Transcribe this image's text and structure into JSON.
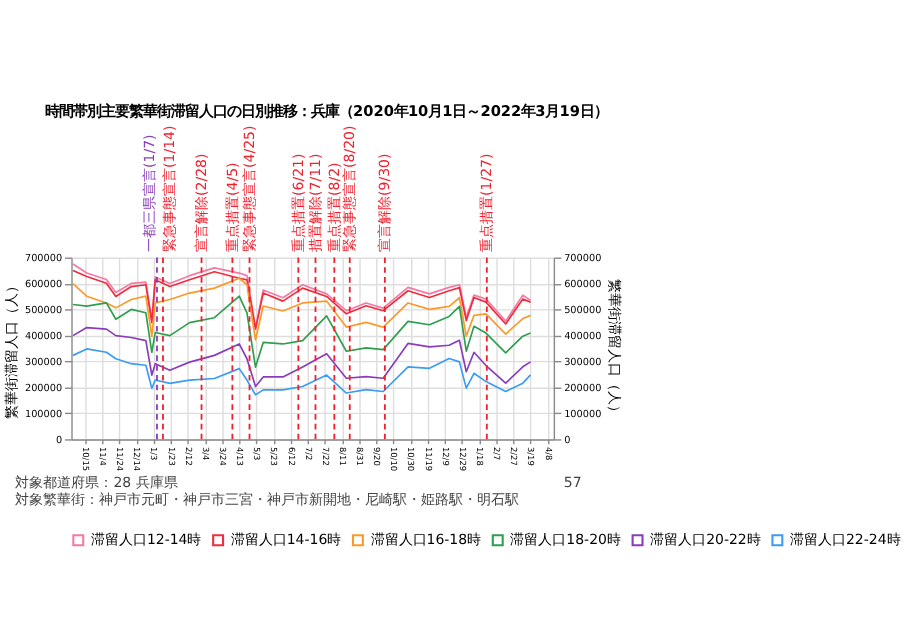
{
  "chart_data": {
    "type": "line",
    "title": "時間帯別主要繁華街滞留人口の日別推移：兵庫（2020年10月1日～2022年3月19日）",
    "ylabel": "繁華街滞留人口（人）",
    "y2label": "繁華街滞留人口（人）",
    "x": [
      "2020-10-01",
      "2020-10-17",
      "2020-11-09",
      "2020-11-20",
      "2020-12-08",
      "2020-12-25",
      "2021-01-01",
      "2021-01-05",
      "2021-01-22",
      "2021-02-14",
      "2021-03-15",
      "2021-04-13",
      "2021-04-22",
      "2021-05-02",
      "2021-05-11",
      "2021-06-03",
      "2021-06-26",
      "2021-07-24",
      "2021-08-16",
      "2021-09-08",
      "2021-09-28",
      "2021-10-27",
      "2021-11-21",
      "2021-12-14",
      "2021-12-26",
      "2022-01-03",
      "2022-01-12",
      "2022-01-26",
      "2022-02-18",
      "2022-03-10",
      "2022-03-19"
    ],
    "series": [
      {
        "name": "滞留人口12-14時",
        "color": "#f47aa6",
        "values": [
          675000,
          640000,
          615000,
          565000,
          600000,
          605000,
          460000,
          625000,
          600000,
          630000,
          660000,
          640000,
          630000,
          430000,
          575000,
          545000,
          595000,
          560000,
          495000,
          525000,
          505000,
          585000,
          560000,
          585000,
          595000,
          470000,
          555000,
          540000,
          455000,
          555000,
          535000
        ]
      },
      {
        "name": "滞留人口14-16時",
        "color": "#f02d3e",
        "values": [
          650000,
          627000,
          601000,
          550000,
          588000,
          595000,
          449000,
          614000,
          588000,
          614000,
          645000,
          620000,
          614000,
          424000,
          563000,
          532000,
          582000,
          550000,
          483000,
          514000,
          495000,
          572000,
          546000,
          572000,
          584000,
          457000,
          546000,
          528000,
          444000,
          540000,
          528000
        ]
      },
      {
        "name": "滞留人口16-18時",
        "color": "#fb9a2a",
        "values": [
          599000,
          551000,
          525000,
          506000,
          538000,
          551000,
          396000,
          525000,
          538000,
          563000,
          582000,
          620000,
          595000,
          383000,
          513000,
          494000,
          525000,
          532000,
          432000,
          450000,
          432000,
          525000,
          500000,
          512000,
          545000,
          397000,
          477000,
          483000,
          405000,
          465000,
          477000
        ]
      },
      {
        "name": "滞留人口18-20時",
        "color": "#2e9f4e",
        "values": [
          519000,
          513000,
          525000,
          462000,
          500000,
          487000,
          335000,
          411000,
          399000,
          449000,
          468000,
          551000,
          487000,
          278000,
          373000,
          367000,
          380000,
          475000,
          339000,
          352000,
          345000,
          454000,
          441000,
          473000,
          512000,
          339000,
          435000,
          409000,
          333000,
          397000,
          409000
        ]
      },
      {
        "name": "滞留人口20-22時",
        "color": "#8a3dbb",
        "values": [
          399000,
          430000,
          424000,
          399000,
          392000,
          380000,
          247000,
          291000,
          266000,
          297000,
          323000,
          367000,
          310000,
          203000,
          240000,
          240000,
          278000,
          329000,
          235000,
          241000,
          235000,
          369000,
          356000,
          362000,
          381000,
          260000,
          335000,
          284000,
          216000,
          279000,
          298000
        ]
      },
      {
        "name": "滞留人口22-24時",
        "color": "#3a9cf2",
        "values": [
          323000,
          348000,
          335000,
          310000,
          291000,
          285000,
          196000,
          228000,
          215000,
          228000,
          234000,
          272000,
          228000,
          171000,
          190000,
          190000,
          203000,
          247000,
          178000,
          191000,
          184000,
          279000,
          273000,
          311000,
          298000,
          197000,
          254000,
          222000,
          184000,
          216000,
          248000
        ]
      }
    ],
    "xlim": [
      "2020-09-29",
      "2022-04-15"
    ],
    "xticks": [
      {
        "value": "2020-10-15",
        "label": "10/15"
      },
      {
        "value": "2020-11-04",
        "label": "11/4"
      },
      {
        "value": "2020-11-24",
        "label": "11/24"
      },
      {
        "value": "2020-12-14",
        "label": "12/14"
      },
      {
        "value": "2021-01-03",
        "label": "1/3"
      },
      {
        "value": "2021-01-23",
        "label": "1/23"
      },
      {
        "value": "2021-02-12",
        "label": "2/12"
      },
      {
        "value": "2021-03-04",
        "label": "3/4"
      },
      {
        "value": "2021-03-24",
        "label": "3/24"
      },
      {
        "value": "2021-04-13",
        "label": "4/13"
      },
      {
        "value": "2021-05-03",
        "label": "5/3"
      },
      {
        "value": "2021-05-23",
        "label": "5/23"
      },
      {
        "value": "2021-06-12",
        "label": "6/12"
      },
      {
        "value": "2021-07-02",
        "label": "7/2"
      },
      {
        "value": "2021-07-22",
        "label": "7/22"
      },
      {
        "value": "2021-08-11",
        "label": "8/11"
      },
      {
        "value": "2021-08-31",
        "label": "8/31"
      },
      {
        "value": "2021-09-20",
        "label": "9/20"
      },
      {
        "value": "2021-10-10",
        "label": "10/10"
      },
      {
        "value": "2021-10-30",
        "label": "10/30"
      },
      {
        "value": "2021-11-19",
        "label": "11/19"
      },
      {
        "value": "2021-12-09",
        "label": "12/9"
      },
      {
        "value": "2021-12-29",
        "label": "12/29"
      },
      {
        "value": "2022-01-18",
        "label": "1/18"
      },
      {
        "value": "2022-02-07",
        "label": "2/7"
      },
      {
        "value": "2022-02-27",
        "label": "2/27"
      },
      {
        "value": "2022-03-19",
        "label": "3/19"
      },
      {
        "value": "2022-04-08",
        "label": "4/8"
      }
    ],
    "ylim": [
      0,
      700000
    ],
    "yticks": [
      0,
      100000,
      200000,
      300000,
      400000,
      500000,
      600000,
      700000
    ],
    "y2lim": [
      0,
      700000
    ],
    "y2ticks": [
      0,
      100000,
      200000,
      300000,
      400000,
      500000,
      600000,
      700000
    ],
    "ref_lines": [
      {
        "axis": "x",
        "value": "2021-01-07",
        "label": "一都三県宣言(1/7)",
        "color": "#8a3dbb",
        "line_style": "dashed"
      },
      {
        "axis": "x",
        "value": "2021-01-14",
        "label": "緊急事態宣言(1/14)",
        "color": "#f0202e",
        "line_style": "dashed"
      },
      {
        "axis": "x",
        "value": "2021-02-28",
        "label": "宣言解除(2/28)",
        "color": "#f0202e",
        "line_style": "dashed"
      },
      {
        "axis": "x",
        "value": "2021-04-05",
        "label": "重点措置(4/5)",
        "color": "#f0202e",
        "line_style": "dashed"
      },
      {
        "axis": "x",
        "value": "2021-04-25",
        "label": "緊急事態宣言(4/25)",
        "color": "#f0202e",
        "line_style": "dashed"
      },
      {
        "axis": "x",
        "value": "2021-06-21",
        "label": "重点措置(6/21)",
        "color": "#f0202e",
        "line_style": "dashed"
      },
      {
        "axis": "x",
        "value": "2021-07-11",
        "label": "措置解除(7/11)",
        "color": "#f0202e",
        "line_style": "dashed"
      },
      {
        "axis": "x",
        "value": "2021-08-02",
        "label": "重点措置(8/2)",
        "color": "#f0202e",
        "line_style": "dashed"
      },
      {
        "axis": "x",
        "value": "2021-08-20",
        "label": "緊急事態宣言(8/20)",
        "color": "#f0202e",
        "line_style": "dashed"
      },
      {
        "axis": "x",
        "value": "2021-09-30",
        "label": "宣言解除(9/30)",
        "color": "#f0202e",
        "line_style": "dashed"
      },
      {
        "axis": "x",
        "value": "2022-01-27",
        "label": "重点措置(1/27)",
        "color": "#f0202e",
        "line_style": "dashed"
      }
    ],
    "annotations": [
      "対象都道府県：28 兵庫県",
      "対象繁華街：神戸市元町・神戸市三宮・神戸市新開地・尼崎駅・姫路駅・明石駅",
      "57"
    ],
    "grid": true,
    "legend": "bottom",
    "marker": "none",
    "line_style": "solid"
  }
}
